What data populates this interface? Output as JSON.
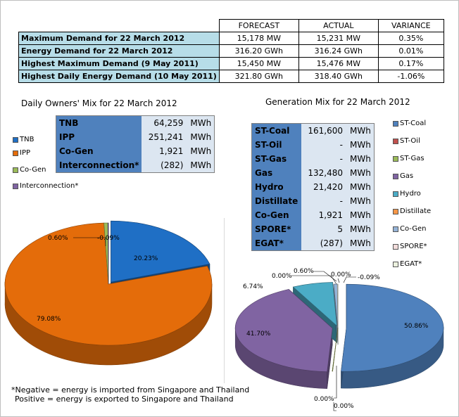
{
  "demand_table": {
    "headers": [
      "",
      "FORECAST",
      "ACTUAL",
      "VARIANCE"
    ],
    "rows": [
      {
        "label": "Maximum Demand for 22 March 2012",
        "forecast": "15,178  MW",
        "actual": "15,231  MW",
        "variance": "0.35%"
      },
      {
        "label": "Energy Demand for 22 March 2012",
        "forecast": "316.20  GWh",
        "actual": "316.24  GWh",
        "variance": "0.01%"
      },
      {
        "label": "Highest Maximum Demand (9 May 2011)",
        "forecast": "15,450  MW",
        "actual": "15,476  MW",
        "variance": "0.17%"
      },
      {
        "label": "Highest Daily Energy Demand (10 May 2011)",
        "forecast": "321.80  GWh",
        "actual": "318.40  GWh",
        "variance": "-1.06%"
      }
    ]
  },
  "owners_mix": {
    "title": "Daily Owners' Mix for 22 March 2012",
    "rows": [
      {
        "name": "TNB",
        "value": "64,259",
        "unit": "MWh"
      },
      {
        "name": "IPP",
        "value": "251,241",
        "unit": "MWh"
      },
      {
        "name": "Co-Gen",
        "value": "1,921",
        "unit": "MWh"
      },
      {
        "name": "Interconnection*",
        "value": "(282)",
        "unit": "MWh"
      }
    ]
  },
  "generation_mix": {
    "title": "Generation Mix for 22 March 2012",
    "rows": [
      {
        "name": "ST-Coal",
        "value": "161,600",
        "unit": "MWh"
      },
      {
        "name": "ST-Oil",
        "value": "-",
        "unit": "MWh"
      },
      {
        "name": "ST-Gas",
        "value": "-",
        "unit": "MWh"
      },
      {
        "name": "Gas",
        "value": "132,480",
        "unit": "MWh"
      },
      {
        "name": "Hydro",
        "value": "21,420",
        "unit": "MWh"
      },
      {
        "name": "Distillate",
        "value": "-",
        "unit": "MWh"
      },
      {
        "name": "Co-Gen",
        "value": "1,921",
        "unit": "MWh"
      },
      {
        "name": "SPORE*",
        "value": "5",
        "unit": "MWh"
      },
      {
        "name": "EGAT*",
        "value": "(287)",
        "unit": "MWh"
      }
    ]
  },
  "chart_data": [
    {
      "type": "pie",
      "title": "Daily Owners' Mix for 22 March 2012",
      "categories": [
        "TNB",
        "IPP",
        "Co-Gen",
        "Interconnection*"
      ],
      "values": [
        20.23,
        79.08,
        0.6,
        -0.09
      ],
      "labels": [
        "20.23%",
        "79.08%",
        "0.60%",
        "-0.09%"
      ],
      "colors": [
        "#1f6fc5",
        "#e46c0a",
        "#9bbb59",
        "#8064a2"
      ],
      "legend": "left"
    },
    {
      "type": "pie",
      "title": "Generation Mix for 22 March 2012",
      "categories": [
        "ST-Coal",
        "ST-Oil",
        "ST-Gas",
        "Gas",
        "Hydro",
        "Distillate",
        "Co-Gen",
        "SPORE*",
        "EGAT*"
      ],
      "values": [
        50.86,
        0.0,
        0.0,
        41.7,
        6.74,
        0.0,
        0.6,
        0.0,
        -0.09
      ],
      "labels": [
        "50.86%",
        "0.00%",
        "0.00%",
        "41.70%",
        "6.74%",
        "0.00%",
        "0.60%",
        "0.00%",
        "-0.09%"
      ],
      "colors": [
        "#4f81bd",
        "#c0504d",
        "#9bbb59",
        "#8064a2",
        "#4bacc6",
        "#f79646",
        "#95b3d7",
        "#f2dcdb",
        "#ebf1de"
      ],
      "legend": "right"
    }
  ],
  "footnote": {
    "line1": "*Negative = energy is imported from Singapore and Thailand",
    "line2": "Positive = energy is exported to Singapore and Thailand"
  }
}
